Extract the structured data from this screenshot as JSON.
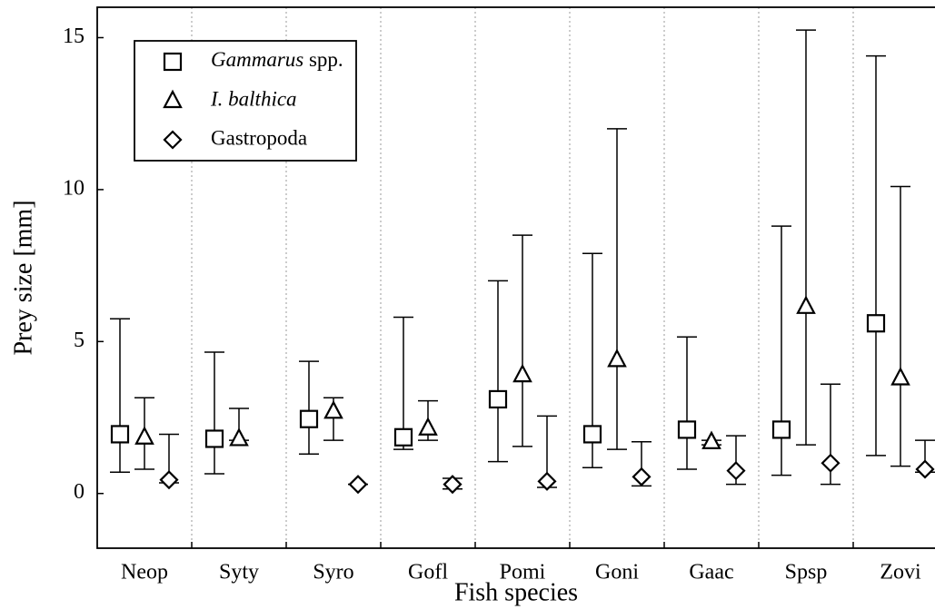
{
  "chart_data": {
    "type": "errorbar",
    "xlabel": "Fish species",
    "ylabel": "Prey size [mm]",
    "categories": [
      "Neop",
      "Syty",
      "Syro",
      "Gofl",
      "Pomi",
      "Goni",
      "Gaac",
      "Spsp",
      "Zovi"
    ],
    "ylim": [
      -1.8,
      16
    ],
    "yticks": [
      0,
      5,
      10,
      15
    ],
    "series": [
      {
        "name": "Gammarus spp.",
        "marker": "square",
        "color": "#000000",
        "values": [
          1.95,
          1.8,
          2.45,
          1.85,
          3.1,
          1.95,
          2.1,
          2.1,
          5.6
        ],
        "low": [
          0.7,
          0.65,
          1.3,
          1.45,
          1.05,
          0.85,
          0.8,
          0.6,
          1.25
        ],
        "high": [
          5.75,
          4.65,
          4.35,
          5.8,
          7.0,
          7.9,
          5.15,
          8.8,
          14.4
        ]
      },
      {
        "name": "I. balthica",
        "marker": "triangle",
        "color": "#000000",
        "values": [
          1.85,
          1.8,
          2.7,
          2.15,
          3.9,
          4.4,
          1.7,
          6.15,
          3.8
        ],
        "low": [
          0.8,
          1.75,
          1.75,
          1.75,
          1.55,
          1.45,
          1.6,
          1.6,
          0.9
        ],
        "high": [
          3.15,
          2.8,
          3.15,
          3.05,
          8.5,
          12.0,
          1.75,
          15.25,
          10.1
        ]
      },
      {
        "name": "Gastropoda",
        "marker": "diamond",
        "color": "#000000",
        "values": [
          0.45,
          null,
          0.3,
          0.3,
          0.4,
          0.55,
          0.75,
          1.0,
          0.8
        ],
        "low": [
          0.35,
          null,
          0.3,
          0.15,
          0.2,
          0.25,
          0.3,
          0.3,
          0.7
        ],
        "high": [
          1.95,
          null,
          0.3,
          0.5,
          2.55,
          1.7,
          1.9,
          3.6,
          1.75
        ]
      }
    ]
  }
}
